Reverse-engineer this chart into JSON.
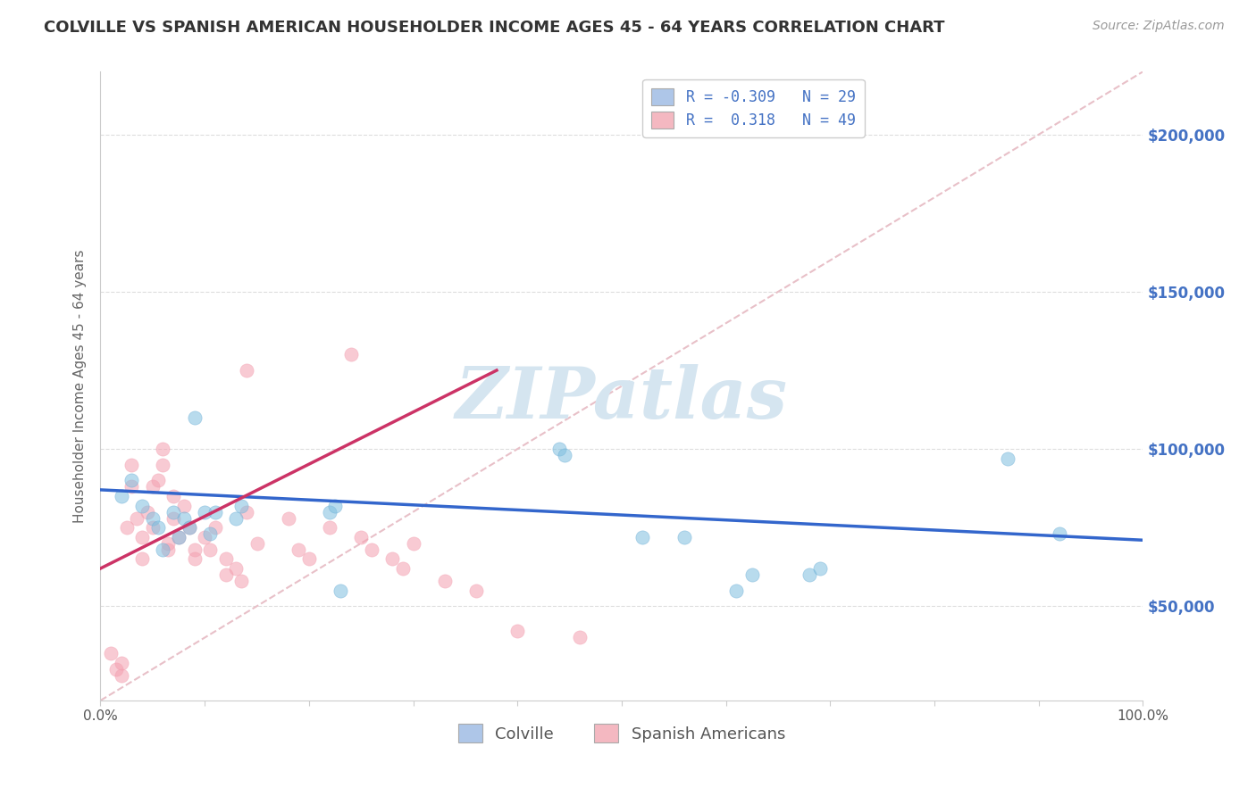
{
  "title": "COLVILLE VS SPANISH AMERICAN HOUSEHOLDER INCOME AGES 45 - 64 YEARS CORRELATION CHART",
  "source_text": "Source: ZipAtlas.com",
  "ylabel": "Householder Income Ages 45 - 64 years",
  "xlim": [
    0.0,
    1.0
  ],
  "ylim": [
    20000,
    220000
  ],
  "xticks": [
    0.0,
    0.1,
    0.2,
    0.3,
    0.4,
    0.5,
    0.6,
    0.7,
    0.8,
    0.9,
    1.0
  ],
  "xticklabels": [
    "0.0%",
    "",
    "",
    "",
    "",
    "",
    "",
    "",
    "",
    "",
    "100.0%"
  ],
  "ytick_positions": [
    50000,
    100000,
    150000,
    200000
  ],
  "ytick_labels": [
    "$50,000",
    "$100,000",
    "$150,000",
    "$200,000"
  ],
  "legend_entries": [
    {
      "label": "R = -0.309   N = 29",
      "color": "#aec6e8"
    },
    {
      "label": "R =  0.318   N = 49",
      "color": "#f4b8c1"
    }
  ],
  "legend_bottom": [
    {
      "label": "Colville",
      "color": "#aec6e8"
    },
    {
      "label": "Spanish Americans",
      "color": "#f4b8c1"
    }
  ],
  "colville_scatter": [
    [
      0.02,
      85000
    ],
    [
      0.03,
      90000
    ],
    [
      0.04,
      82000
    ],
    [
      0.05,
      78000
    ],
    [
      0.055,
      75000
    ],
    [
      0.06,
      68000
    ],
    [
      0.07,
      80000
    ],
    [
      0.075,
      72000
    ],
    [
      0.08,
      78000
    ],
    [
      0.085,
      75000
    ],
    [
      0.09,
      110000
    ],
    [
      0.1,
      80000
    ],
    [
      0.105,
      73000
    ],
    [
      0.11,
      80000
    ],
    [
      0.13,
      78000
    ],
    [
      0.135,
      82000
    ],
    [
      0.22,
      80000
    ],
    [
      0.225,
      82000
    ],
    [
      0.23,
      55000
    ],
    [
      0.44,
      100000
    ],
    [
      0.445,
      98000
    ],
    [
      0.52,
      72000
    ],
    [
      0.56,
      72000
    ],
    [
      0.61,
      55000
    ],
    [
      0.625,
      60000
    ],
    [
      0.68,
      60000
    ],
    [
      0.69,
      62000
    ],
    [
      0.87,
      97000
    ],
    [
      0.92,
      73000
    ]
  ],
  "spanish_scatter": [
    [
      0.01,
      35000
    ],
    [
      0.015,
      30000
    ],
    [
      0.02,
      28000
    ],
    [
      0.02,
      32000
    ],
    [
      0.025,
      75000
    ],
    [
      0.03,
      88000
    ],
    [
      0.03,
      95000
    ],
    [
      0.035,
      78000
    ],
    [
      0.04,
      65000
    ],
    [
      0.04,
      72000
    ],
    [
      0.045,
      80000
    ],
    [
      0.05,
      88000
    ],
    [
      0.05,
      75000
    ],
    [
      0.055,
      90000
    ],
    [
      0.06,
      95000
    ],
    [
      0.06,
      100000
    ],
    [
      0.065,
      68000
    ],
    [
      0.065,
      70000
    ],
    [
      0.07,
      85000
    ],
    [
      0.07,
      78000
    ],
    [
      0.075,
      72000
    ],
    [
      0.08,
      82000
    ],
    [
      0.085,
      75000
    ],
    [
      0.09,
      68000
    ],
    [
      0.09,
      65000
    ],
    [
      0.1,
      72000
    ],
    [
      0.105,
      68000
    ],
    [
      0.11,
      75000
    ],
    [
      0.12,
      65000
    ],
    [
      0.12,
      60000
    ],
    [
      0.13,
      62000
    ],
    [
      0.135,
      58000
    ],
    [
      0.14,
      125000
    ],
    [
      0.14,
      80000
    ],
    [
      0.15,
      70000
    ],
    [
      0.18,
      78000
    ],
    [
      0.19,
      68000
    ],
    [
      0.2,
      65000
    ],
    [
      0.22,
      75000
    ],
    [
      0.24,
      130000
    ],
    [
      0.25,
      72000
    ],
    [
      0.26,
      68000
    ],
    [
      0.28,
      65000
    ],
    [
      0.29,
      62000
    ],
    [
      0.3,
      70000
    ],
    [
      0.33,
      58000
    ],
    [
      0.36,
      55000
    ],
    [
      0.4,
      42000
    ],
    [
      0.46,
      40000
    ]
  ],
  "colville_trendline": [
    [
      0.0,
      87000
    ],
    [
      1.0,
      71000
    ]
  ],
  "spanish_trendline": [
    [
      0.0,
      62000
    ],
    [
      0.38,
      125000
    ]
  ],
  "diagonal_line": [
    [
      0.0,
      20000
    ],
    [
      1.0,
      220000
    ]
  ],
  "scatter_size": 120,
  "scatter_alpha": 0.55,
  "colville_color": "#7fbfdf",
  "spanish_color": "#f4a0b0",
  "colville_edge": "#6baed6",
  "spanish_edge": "#f4a0b0",
  "colville_trend_color": "#3366cc",
  "spanish_trend_color": "#cc3366",
  "diagonal_color": "#e8c0c8",
  "watermark": "ZIPatlas",
  "watermark_color": "#d5e5f0",
  "background_color": "#ffffff",
  "title_color": "#333333",
  "title_fontsize": 13,
  "axis_label_color": "#666666",
  "ytick_color": "#4472c4",
  "grid_color": "#dddddd"
}
